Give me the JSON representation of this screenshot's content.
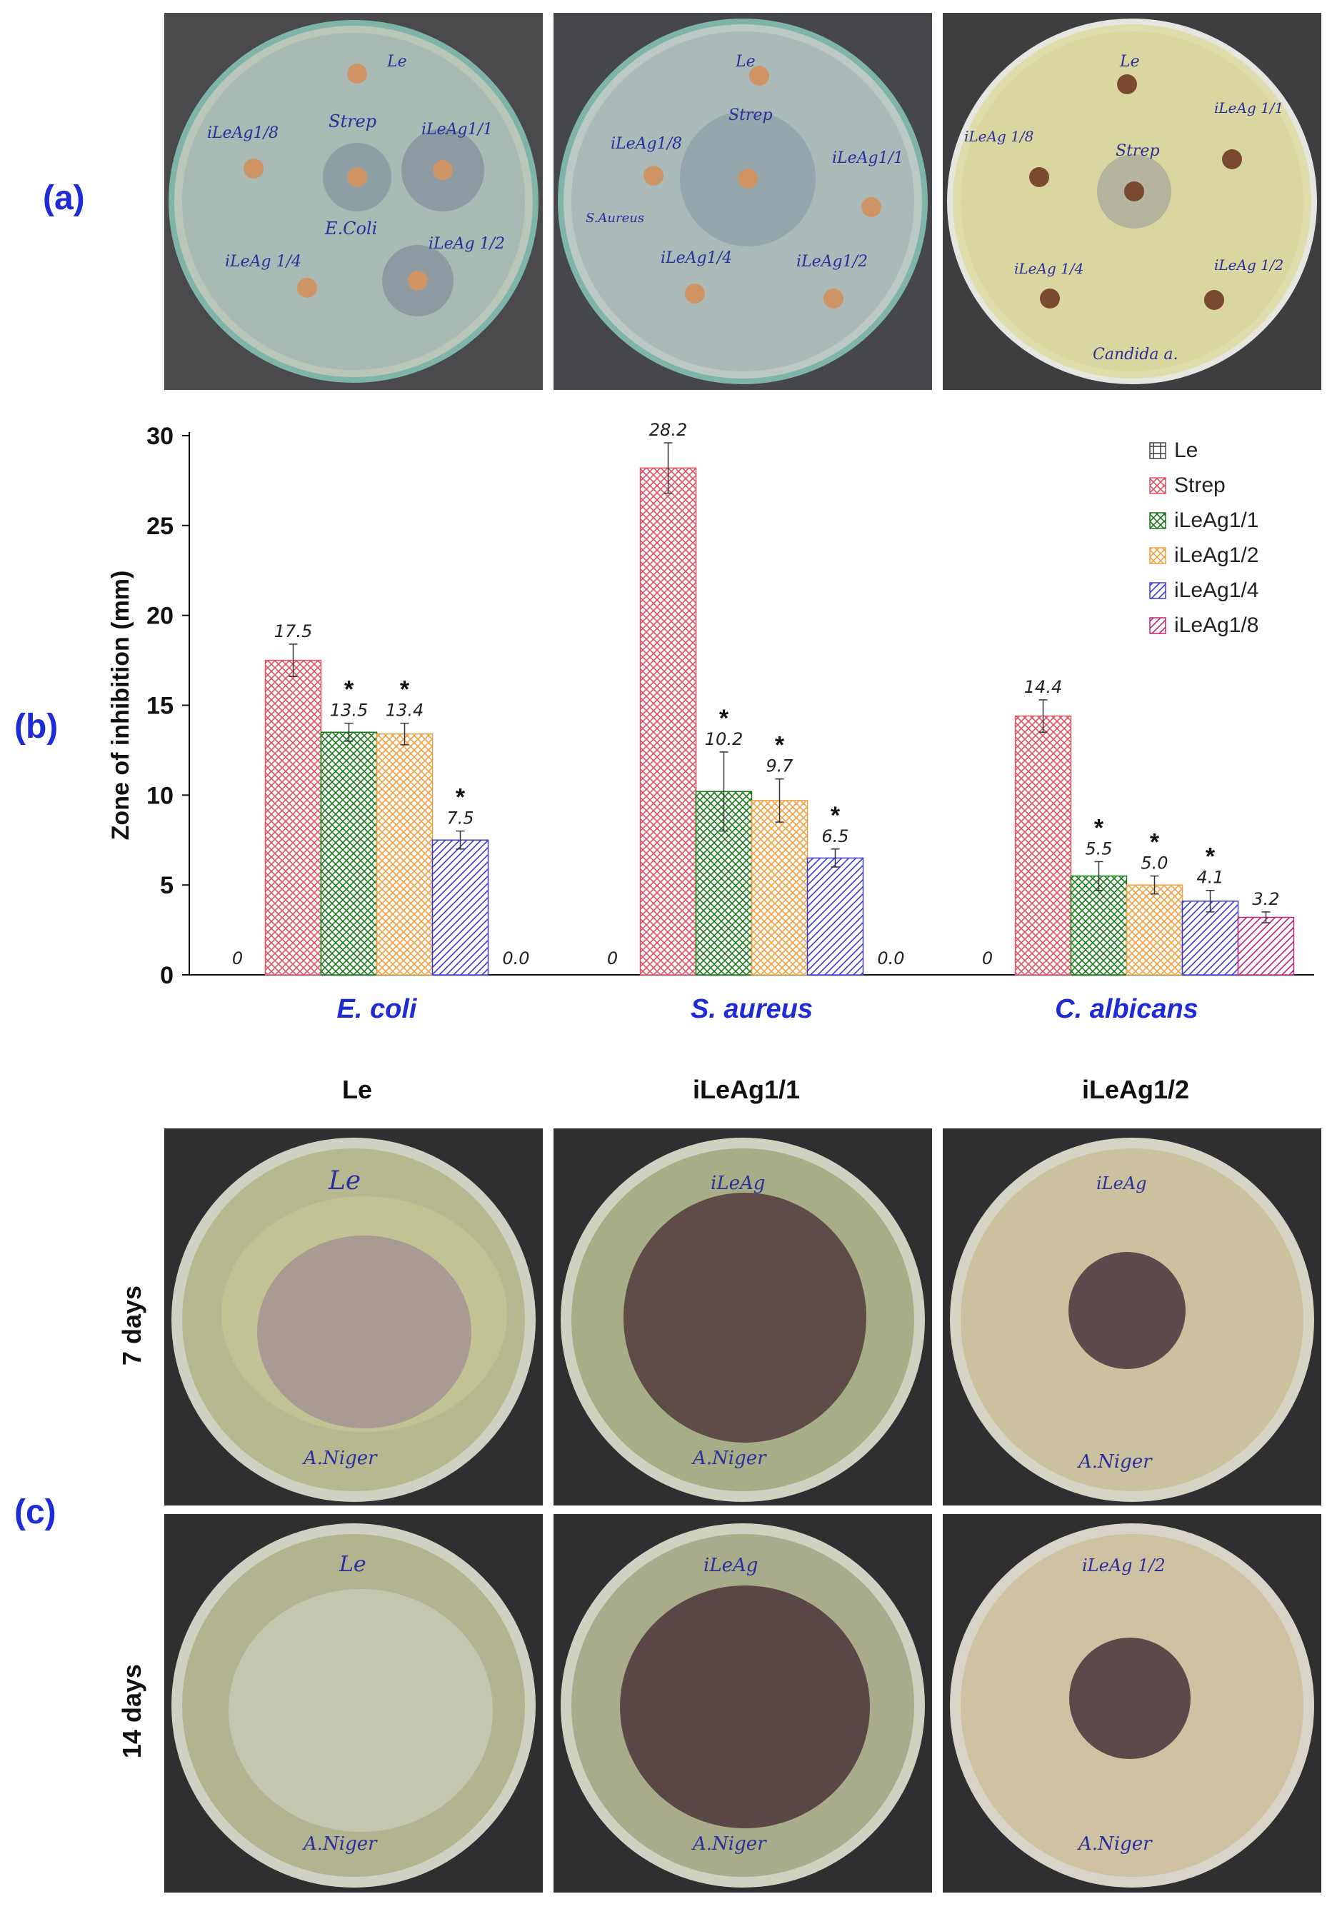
{
  "panel_labels": {
    "a": "(a)",
    "b": "(b)",
    "c": "(c)"
  },
  "panel_a_plates": [
    {
      "organism_label": "E.Coli",
      "disc_labels": [
        "Le",
        "Strep",
        "iLeAg1/8",
        "iLeAg1/1",
        "iLeAg 1/4",
        "iLeAg 1/2"
      ]
    },
    {
      "organism_label": "S.Aureus",
      "disc_labels": [
        "Le",
        "Strep",
        "iLeAg1/8",
        "iLeAg1/1",
        "iLeAg1/4",
        "iLeAg1/2"
      ]
    },
    {
      "organism_label": "Candida a.",
      "disc_labels": [
        "Le",
        "Strep",
        "iLeAg 1/8",
        "iLeAg 1/1",
        "iLeAg 1/4",
        "iLeAg 1/2"
      ]
    }
  ],
  "chart_data": {
    "type": "bar",
    "ylabel": "Zone of inhibition (mm)",
    "xlabel": "",
    "ylim": [
      0,
      30
    ],
    "yticks": [
      0,
      5,
      10,
      15,
      20,
      25,
      30
    ],
    "categories": [
      "E. coli",
      "S. aureus",
      "C. albicans"
    ],
    "series": [
      {
        "name": "Le",
        "values": [
          0,
          0,
          0
        ],
        "errors": [
          0,
          0,
          0
        ],
        "labels": [
          "0",
          "0",
          "0"
        ],
        "star": [
          false,
          false,
          false
        ],
        "color": "#444444",
        "pattern": "grid"
      },
      {
        "name": "Strep",
        "values": [
          17.5,
          28.2,
          14.4
        ],
        "errors": [
          0.9,
          1.4,
          0.9
        ],
        "labels": [
          "17.5",
          "28.2",
          "14.4"
        ],
        "star": [
          false,
          false,
          false
        ],
        "color": "#e05060",
        "pattern": "cross"
      },
      {
        "name": "iLeAg1/1",
        "values": [
          13.5,
          10.2,
          5.5
        ],
        "errors": [
          0.5,
          2.2,
          0.8
        ],
        "labels": [
          "13.5",
          "10.2",
          "5.5"
        ],
        "star": [
          true,
          true,
          true
        ],
        "color": "#1a7a1a",
        "pattern": "cross"
      },
      {
        "name": "iLeAg1/2",
        "values": [
          13.4,
          9.7,
          5.0
        ],
        "errors": [
          0.6,
          1.2,
          0.5
        ],
        "labels": [
          "13.4",
          "9.7",
          "5.0"
        ],
        "star": [
          true,
          true,
          true
        ],
        "color": "#f0a040",
        "pattern": "cross"
      },
      {
        "name": "iLeAg1/4",
        "values": [
          7.5,
          6.5,
          4.1
        ],
        "errors": [
          0.5,
          0.5,
          0.6
        ],
        "labels": [
          "7.5",
          "6.5",
          "4.1"
        ],
        "star": [
          true,
          true,
          true
        ],
        "color": "#3a3ad8",
        "pattern": "diag"
      },
      {
        "name": "iLeAg1/8",
        "values": [
          0,
          0,
          3.2
        ],
        "errors": [
          0,
          0,
          0.3
        ],
        "labels": [
          "0.0",
          "0.0",
          "3.2"
        ],
        "star": [
          false,
          false,
          false
        ],
        "color": "#c0207a",
        "pattern": "diag"
      }
    ],
    "star_symbol": "*",
    "legend_position": "top-right",
    "grid": false
  },
  "panel_c": {
    "column_headers": [
      "Le",
      "iLeAg1/1",
      "iLeAg1/2"
    ],
    "row_headers": [
      "7 days",
      "14 days"
    ],
    "plate_labels_7d": [
      "Le",
      "iLeAg",
      "iLeAg"
    ],
    "plate_labels_14d": [
      "Le",
      "iLeAg",
      "iLeAg 1/2"
    ],
    "organism_label": "A.Niger"
  }
}
